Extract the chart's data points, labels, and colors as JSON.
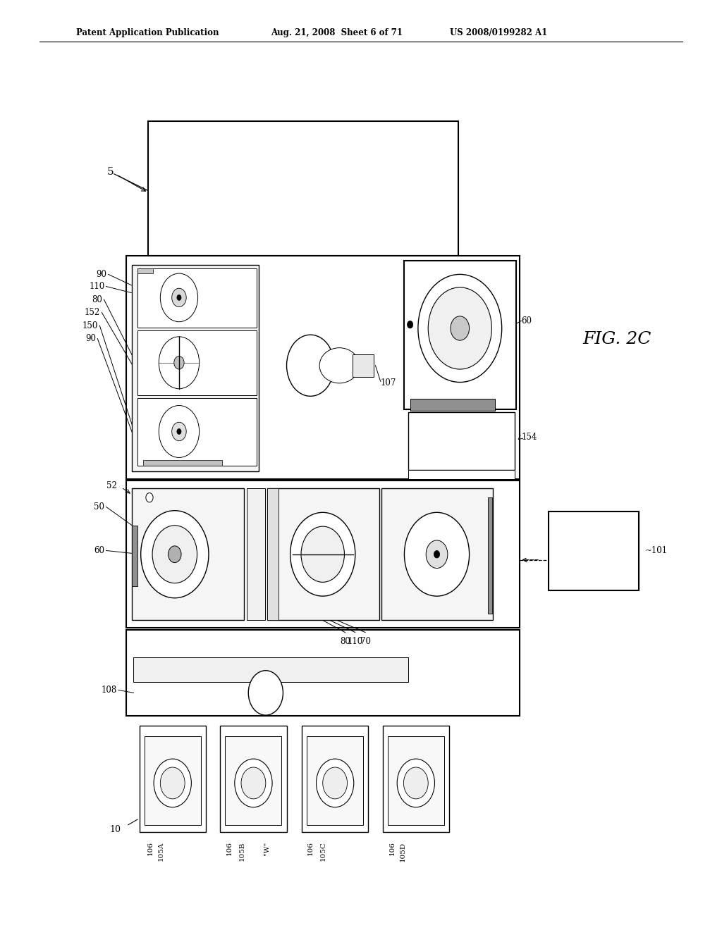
{
  "bg_color": "#ffffff",
  "header_left": "Patent Application Publication",
  "header_mid": "Aug. 21, 2008  Sheet 6 of 71",
  "header_right": "US 2008/0199282 A1",
  "fig_label": "FIG. 2C"
}
